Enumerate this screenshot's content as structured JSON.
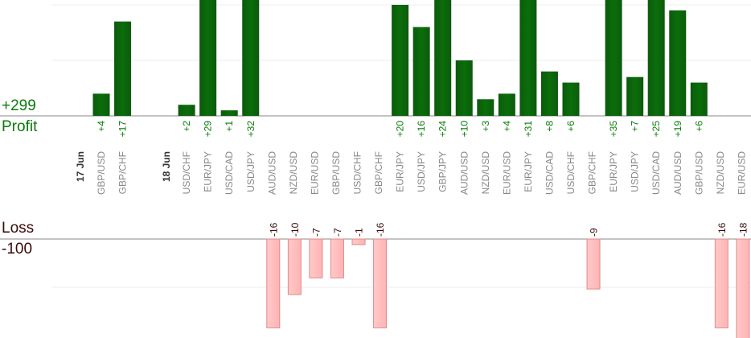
{
  "summary": {
    "profit_total": "+299",
    "profit_label": "Profit",
    "loss_label": "Loss",
    "loss_total": "-100"
  },
  "chart_data": {
    "type": "bar",
    "title": "",
    "legend": "none",
    "date_markers": [
      {
        "label": "17 Jun",
        "before_index": 0
      },
      {
        "label": "18 Jun",
        "before_index": 2
      }
    ],
    "categories": [
      "GBP/USD",
      "GBP/CHF",
      "USD/CHF",
      "EUR/JPY",
      "USD/CAD",
      "USD/JPY",
      "AUD/USD",
      "NZD/USD",
      "EUR/USD",
      "GBP/USD",
      "USD/CHF",
      "GBP/CHF",
      "EUR/JPY",
      "USD/JPY",
      "GBP/JPY",
      "AUD/USD",
      "NZD/USD",
      "EUR/USD",
      "EUR/JPY",
      "USD/CAD",
      "USD/CHF",
      "GBP/CHF",
      "EUR/JPY",
      "USD/JPY",
      "USD/CAD",
      "AUD/USD",
      "GBP/USD",
      "NZD/USD",
      "EUR/USD"
    ],
    "values": [
      4,
      17,
      2,
      29,
      1,
      32,
      -16,
      -10,
      -7,
      -7,
      -1,
      -16,
      20,
      16,
      24,
      10,
      3,
      4,
      31,
      8,
      6,
      -9,
      35,
      7,
      25,
      19,
      6,
      -16,
      -18
    ],
    "value_labels": [
      "+4",
      "+17",
      "+2",
      "+29",
      "+1",
      "+32",
      "-16",
      "-10",
      "-7",
      "-7",
      "-1",
      "-16",
      "+20",
      "+16",
      "+24",
      "+10",
      "+3",
      "+4",
      "+31",
      "+8",
      "+6",
      "-9",
      "+35",
      "+7",
      "+25",
      "+19",
      "+6",
      "-16",
      "-18"
    ],
    "colors": {
      "profit": "#0a6e0a",
      "profit_dark": "#0d5a0d",
      "loss": "#ffb3b3",
      "loss_border": "#e08a8a",
      "grid": "#eeeeee",
      "axis": "#888888"
    }
  }
}
